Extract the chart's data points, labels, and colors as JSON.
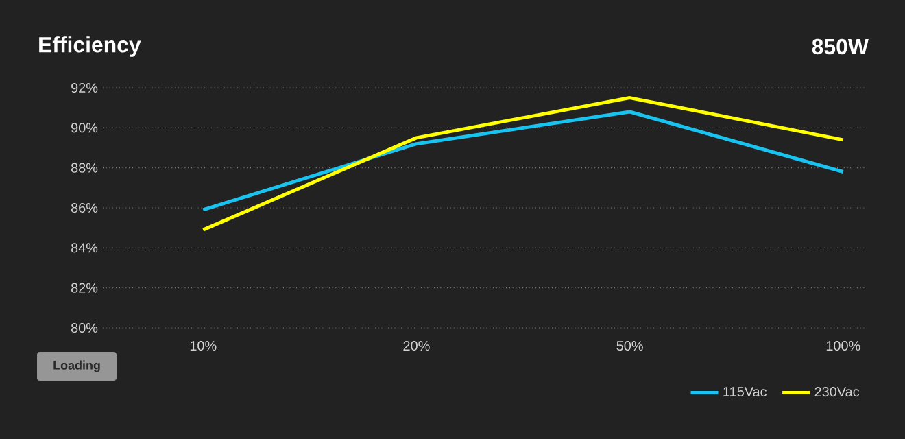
{
  "chart_data": {
    "type": "line",
    "title": "Efficiency",
    "subtitle": "850W",
    "categories": [
      "10%",
      "20%",
      "50%",
      "100%"
    ],
    "series": [
      {
        "name": "115Vac",
        "color": "#19c3f0",
        "values": [
          85.9,
          89.2,
          90.8,
          87.8
        ]
      },
      {
        "name": "230Vac",
        "color": "#ffff00",
        "values": [
          84.9,
          89.5,
          91.5,
          89.4
        ]
      }
    ],
    "ylim": [
      80,
      92
    ],
    "yticks": [
      {
        "value": 80,
        "label": "80%"
      },
      {
        "value": 82,
        "label": "82%"
      },
      {
        "value": 84,
        "label": "84%"
      },
      {
        "value": 86,
        "label": "86%"
      },
      {
        "value": 88,
        "label": "88%"
      },
      {
        "value": 90,
        "label": "90%"
      },
      {
        "value": 92,
        "label": "92%"
      }
    ],
    "grid": "y",
    "legend": "bottom right",
    "marker": "none",
    "line_style": "solid",
    "annotations": [
      "Loading"
    ]
  }
}
